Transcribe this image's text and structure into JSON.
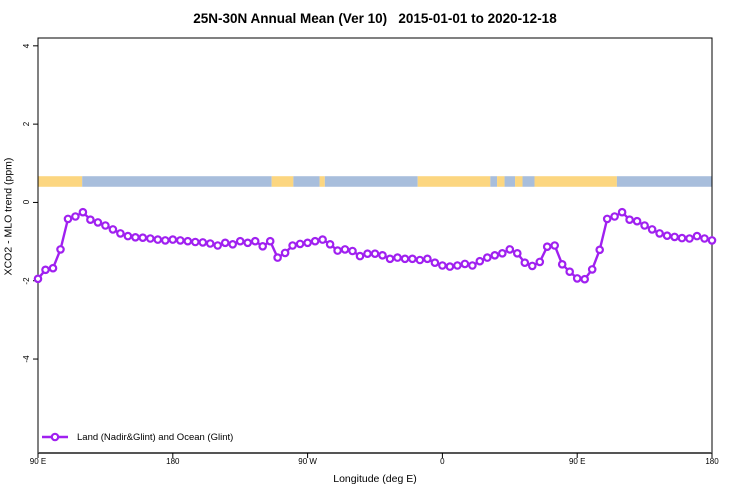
{
  "title": "25N-30N Annual Mean (Ver 10)   2015-01-01 to 2020-12-18",
  "legend": {
    "label": "Land (Nadir&Glint) and Ocean (Glint)"
  },
  "colors": {
    "line": "#A020F0",
    "marker_fill": "#FFFFFF",
    "land_band": "#FCD680",
    "ocean_band": "#A8BEDC",
    "plot_border": "#000000",
    "axis_line": "#555555",
    "text": "#000000"
  },
  "chart_data": {
    "type": "line",
    "title": "25N-30N Annual Mean (Ver 10)   2015-01-01 to 2020-12-18",
    "xlabel": "Longitude (deg E)",
    "ylabel": "XCO2 - MLO trend (ppm)",
    "xlim": [
      90,
      540
    ],
    "ylim": [
      -6.4,
      4.2
    ],
    "grid": false,
    "legend_position": "bottom-left-inside",
    "x_ticks": [
      {
        "deg": 90,
        "label": "90 E"
      },
      {
        "deg": 180,
        "label": "180"
      },
      {
        "deg": 270,
        "label": "90 W"
      },
      {
        "deg": 360,
        "label": "0"
      },
      {
        "deg": 450,
        "label": "90 E"
      },
      {
        "deg": 540,
        "label": "180"
      }
    ],
    "y_ticks": [
      {
        "value": 4,
        "label": "4"
      },
      {
        "value": 2,
        "label": "2"
      },
      {
        "value": 0,
        "label": "0"
      },
      {
        "value": -2,
        "label": "-2"
      },
      {
        "value": -4,
        "label": "-4"
      }
    ],
    "series": [
      {
        "name": "Land (Nadir&Glint) and Ocean (Glint)",
        "marker": "open-circle",
        "x_start_deg": 90,
        "x_step_deg": 5,
        "values": [
          -1.95,
          -1.72,
          -1.68,
          -1.2,
          -0.42,
          -0.36,
          -0.25,
          -0.44,
          -0.51,
          -0.59,
          -0.69,
          -0.79,
          -0.86,
          -0.89,
          -0.9,
          -0.92,
          -0.95,
          -0.97,
          -0.95,
          -0.97,
          -0.99,
          -1.01,
          -1.02,
          -1.05,
          -1.1,
          -1.03,
          -1.07,
          -0.99,
          -1.03,
          -0.99,
          -1.12,
          -0.99,
          -1.41,
          -1.29,
          -1.1,
          -1.06,
          -1.03,
          -0.99,
          -0.95,
          -1.07,
          -1.23,
          -1.2,
          -1.24,
          -1.37,
          -1.31,
          -1.31,
          -1.35,
          -1.44,
          -1.41,
          -1.44,
          -1.44,
          -1.47,
          -1.44,
          -1.54,
          -1.61,
          -1.64,
          -1.61,
          -1.57,
          -1.61,
          -1.5,
          -1.41,
          -1.35,
          -1.3,
          -1.2,
          -1.3,
          -1.54,
          -1.62,
          -1.52,
          -1.13,
          -1.1,
          -1.58,
          -1.77,
          -1.94,
          -1.96,
          -1.71,
          -1.21,
          -0.42,
          -0.36,
          -0.25,
          -0.44,
          -0.48,
          -0.59,
          -0.69,
          -0.79,
          -0.85,
          -0.88,
          -0.91,
          -0.92,
          -0.86,
          -0.92,
          -0.97
        ]
      }
    ],
    "surface_band": {
      "y_top": 0.67,
      "y_bottom": 0.4,
      "segments": [
        {
          "from": 90,
          "to": 119.5,
          "surface": "land"
        },
        {
          "from": 119.5,
          "to": 246,
          "surface": "ocean"
        },
        {
          "from": 246,
          "to": 260.5,
          "surface": "land"
        },
        {
          "from": 260.5,
          "to": 278,
          "surface": "ocean"
        },
        {
          "from": 278,
          "to": 281.5,
          "surface": "land"
        },
        {
          "from": 281.5,
          "to": 343.5,
          "surface": "ocean"
        },
        {
          "from": 343.5,
          "to": 392,
          "surface": "land"
        },
        {
          "from": 392,
          "to": 396.5,
          "surface": "ocean"
        },
        {
          "from": 396.5,
          "to": 401.5,
          "surface": "land"
        },
        {
          "from": 401.5,
          "to": 408.5,
          "surface": "ocean"
        },
        {
          "from": 408.5,
          "to": 413.5,
          "surface": "land"
        },
        {
          "from": 413.5,
          "to": 421.5,
          "surface": "ocean"
        },
        {
          "from": 421.5,
          "to": 476.5,
          "surface": "land"
        },
        {
          "from": 476.5,
          "to": 540,
          "surface": "ocean"
        }
      ]
    }
  }
}
